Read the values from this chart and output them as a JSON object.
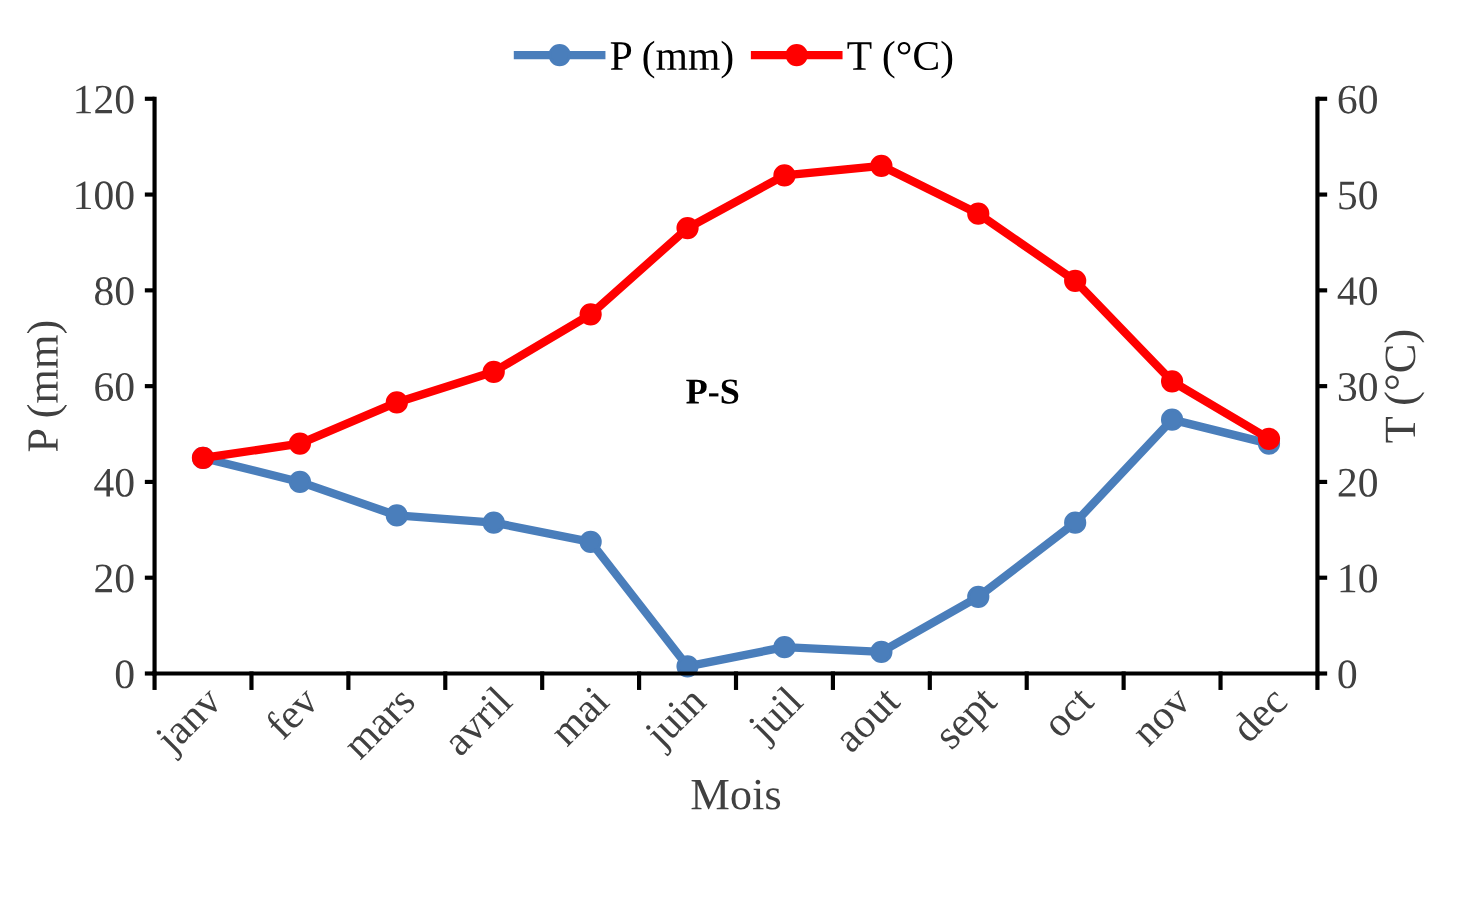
{
  "chart_data": {
    "type": "line",
    "xlabel": "Mois",
    "ylabel": "P (mm)",
    "y2label": "T (°C)",
    "categories": [
      "janv",
      "fev",
      "mars",
      "avril",
      "mai",
      "juin",
      "juil",
      "aout",
      "sept",
      "oct",
      "nov",
      "dec"
    ],
    "series": [
      {
        "name": "P (mm)",
        "color": "#4a7ebb",
        "values": [
          45,
          40,
          33,
          31.5,
          27.5,
          1.5,
          5.5,
          4.5,
          16,
          31.5,
          53,
          48
        ]
      },
      {
        "name": "T (°C)",
        "color": "#ff0000",
        "axis": "y2",
        "values": [
          22.5,
          24,
          28.3,
          31.5,
          37.5,
          46.5,
          52,
          53,
          48,
          41,
          30.5,
          24.5
        ]
      }
    ],
    "ylim": [
      0,
      120
    ],
    "yticks": [
      0,
      20,
      40,
      60,
      80,
      100,
      120
    ],
    "y2lim": [
      0,
      60
    ],
    "y2ticks": [
      0,
      10,
      20,
      30,
      40,
      50,
      60
    ],
    "annotations": [
      "P-S"
    ],
    "legend": "top",
    "marker": "circle",
    "line_style": "solid",
    "grid": false
  }
}
